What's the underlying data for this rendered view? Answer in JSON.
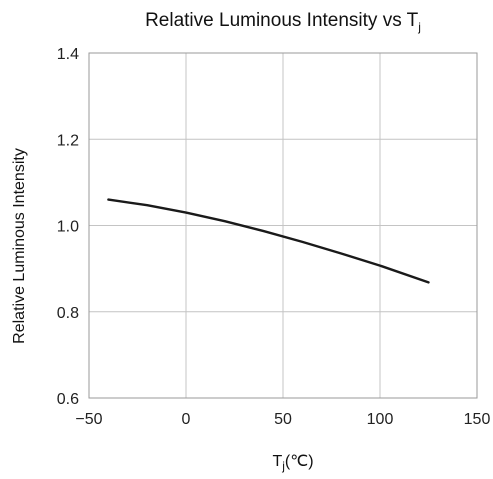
{
  "chart_data": {
    "type": "line",
    "title": {
      "main": "Relative Luminous Intensity vs T",
      "sub": "j"
    },
    "xlabel": {
      "main": "T",
      "sub": "j",
      "unit": "(℃)"
    },
    "ylabel": "Relative Luminous Intensity",
    "xlim": [
      -50,
      150
    ],
    "ylim": [
      0.6,
      1.4
    ],
    "xticks": [
      -50,
      0,
      50,
      100,
      150
    ],
    "xtick_labels": [
      "−50",
      "0",
      "50",
      "100",
      "150"
    ],
    "yticks": [
      0.6,
      0.8,
      1.0,
      1.2,
      1.4
    ],
    "ytick_labels": [
      "0.6",
      "0.8",
      "1.0",
      "1.2",
      "1.4"
    ],
    "grid": true,
    "series": [
      {
        "x": [
          -40,
          -20,
          0,
          20,
          40,
          60,
          80,
          100,
          125
        ],
        "y": [
          1.06,
          1.047,
          1.03,
          1.01,
          0.987,
          0.962,
          0.935,
          0.907,
          0.868
        ]
      }
    ],
    "colors": {
      "line": "#1a1a1a",
      "grid": "#c4c4c4",
      "frame": "#9a9a9a"
    }
  }
}
